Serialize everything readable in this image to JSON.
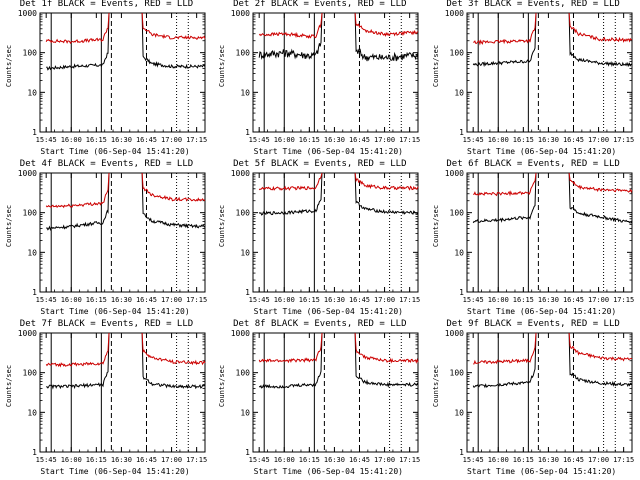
{
  "x_ticks": [
    "15:45",
    "16:00",
    "16:15",
    "16:30",
    "16:45",
    "17:00",
    "17:15"
  ],
  "y_ticks": [
    "1",
    "10",
    "100",
    "1000"
  ],
  "ylabel": "Counts/sec",
  "xlabel": "Start Time (06-Sep-04 15:41:20)",
  "colors": {
    "events": "#000000",
    "lld": "#cc0000",
    "axes": "#000000"
  },
  "chart_data": [
    {
      "type": "line",
      "title": "Det 1f BLACK = Events, RED = LLD",
      "xlabel": "Start Time (06-Sep-04 15:41:20)",
      "ylabel": "Counts/sec",
      "ylog": true,
      "ylim": [
        1,
        1000
      ],
      "x": [
        "15:45",
        "16:00",
        "16:15",
        "16:30",
        "16:45",
        "17:00",
        "17:15"
      ],
      "series": [
        {
          "name": "Events",
          "values": [
            40,
            45,
            48,
            null,
            55,
            45,
            45
          ]
        },
        {
          "name": "LLD",
          "values": [
            200,
            190,
            210,
            null,
            300,
            240,
            240
          ]
        }
      ]
    },
    {
      "type": "line",
      "title": "Det 2f BLACK = Events, RED = LLD",
      "xlabel": "Start Time (06-Sep-04 15:41:20)",
      "ylabel": "Counts/sec",
      "ylog": true,
      "ylim": [
        1,
        1000
      ],
      "x": [
        "15:45",
        "16:00",
        "16:15",
        "16:30",
        "16:45",
        "17:00",
        "17:15"
      ],
      "series": [
        {
          "name": "Events",
          "values": [
            90,
            100,
            85,
            null,
            80,
            75,
            85
          ]
        },
        {
          "name": "LLD",
          "values": [
            280,
            300,
            260,
            null,
            380,
            290,
            320
          ]
        }
      ]
    },
    {
      "type": "line",
      "title": "Det 3f BLACK = Events, RED = LLD",
      "xlabel": "Start Time (06-Sep-04 15:41:20)",
      "ylabel": "Counts/sec",
      "ylog": true,
      "ylim": [
        1,
        1000
      ],
      "x": [
        "15:45",
        "16:00",
        "16:15",
        "16:30",
        "16:45",
        "17:00",
        "17:15"
      ],
      "series": [
        {
          "name": "Events",
          "values": [
            50,
            55,
            60,
            null,
            70,
            55,
            50
          ]
        },
        {
          "name": "LLD",
          "values": [
            180,
            190,
            200,
            null,
            320,
            220,
            210
          ]
        }
      ]
    },
    {
      "type": "line",
      "title": "Det 4f BLACK = Events, RED = LLD",
      "xlabel": "Start Time (06-Sep-04 15:41:20)",
      "ylabel": "Counts/sec",
      "ylog": true,
      "ylim": [
        1,
        1000
      ],
      "x": [
        "15:45",
        "16:00",
        "16:15",
        "16:30",
        "16:45",
        "17:00",
        "17:15"
      ],
      "series": [
        {
          "name": "Events",
          "values": [
            40,
            45,
            55,
            null,
            65,
            50,
            45
          ]
        },
        {
          "name": "LLD",
          "values": [
            140,
            150,
            170,
            null,
            300,
            220,
            210
          ]
        }
      ]
    },
    {
      "type": "line",
      "title": "Det 5f BLACK = Events, RED = LLD",
      "xlabel": "Start Time (06-Sep-04 15:41:20)",
      "ylabel": "Counts/sec",
      "ylog": true,
      "ylim": [
        1,
        1000
      ],
      "x": [
        "15:45",
        "16:00",
        "16:15",
        "16:30",
        "16:45",
        "17:00",
        "17:15"
      ],
      "series": [
        {
          "name": "Events",
          "values": [
            95,
            100,
            110,
            null,
            130,
            105,
            100
          ]
        },
        {
          "name": "LLD",
          "values": [
            400,
            410,
            420,
            null,
            500,
            420,
            420
          ]
        }
      ]
    },
    {
      "type": "line",
      "title": "Det 6f BLACK = Events, RED = LLD",
      "xlabel": "Start Time (06-Sep-04 15:41:20)",
      "ylabel": "Counts/sec",
      "ylog": true,
      "ylim": [
        1,
        1000
      ],
      "x": [
        "15:45",
        "16:00",
        "16:15",
        "16:30",
        "16:45",
        "17:00",
        "17:15"
      ],
      "series": [
        {
          "name": "Events",
          "values": [
            60,
            65,
            75,
            null,
            100,
            80,
            60
          ]
        },
        {
          "name": "LLD",
          "values": [
            300,
            300,
            320,
            null,
            450,
            380,
            360
          ]
        }
      ]
    },
    {
      "type": "line",
      "title": "Det 7f BLACK = Events, RED = LLD",
      "xlabel": "Start Time (06-Sep-04 15:41:20)",
      "ylabel": "Counts/sec",
      "ylog": true,
      "ylim": [
        1,
        1000
      ],
      "x": [
        "15:45",
        "16:00",
        "16:15",
        "16:30",
        "16:45",
        "17:00",
        "17:15"
      ],
      "series": [
        {
          "name": "Events",
          "values": [
            45,
            45,
            50,
            null,
            55,
            45,
            45
          ]
        },
        {
          "name": "LLD",
          "values": [
            160,
            160,
            170,
            null,
            250,
            190,
            180
          ]
        }
      ]
    },
    {
      "type": "line",
      "title": "Det 8f BLACK = Events, RED = LLD",
      "xlabel": "Start Time (06-Sep-04 15:41:20)",
      "ylabel": "Counts/sec",
      "ylog": true,
      "ylim": [
        1,
        1000
      ],
      "x": [
        "15:45",
        "16:00",
        "16:15",
        "16:30",
        "16:45",
        "17:00",
        "17:15"
      ],
      "series": [
        {
          "name": "Events",
          "values": [
            45,
            45,
            50,
            null,
            60,
            50,
            50
          ]
        },
        {
          "name": "LLD",
          "values": [
            200,
            200,
            210,
            null,
            260,
            200,
            200
          ]
        }
      ]
    },
    {
      "type": "line",
      "title": "Det 9f BLACK = Events, RED = LLD",
      "xlabel": "Start Time (06-Sep-04 15:41:20)",
      "ylabel": "Counts/sec",
      "ylog": true,
      "ylim": [
        1,
        1000
      ],
      "x": [
        "15:45",
        "16:00",
        "16:15",
        "16:30",
        "16:45",
        "17:00",
        "17:15"
      ],
      "series": [
        {
          "name": "Events",
          "values": [
            45,
            50,
            55,
            null,
            70,
            55,
            50
          ]
        },
        {
          "name": "LLD",
          "values": [
            180,
            190,
            200,
            null,
            330,
            240,
            220
          ]
        }
      ]
    }
  ]
}
